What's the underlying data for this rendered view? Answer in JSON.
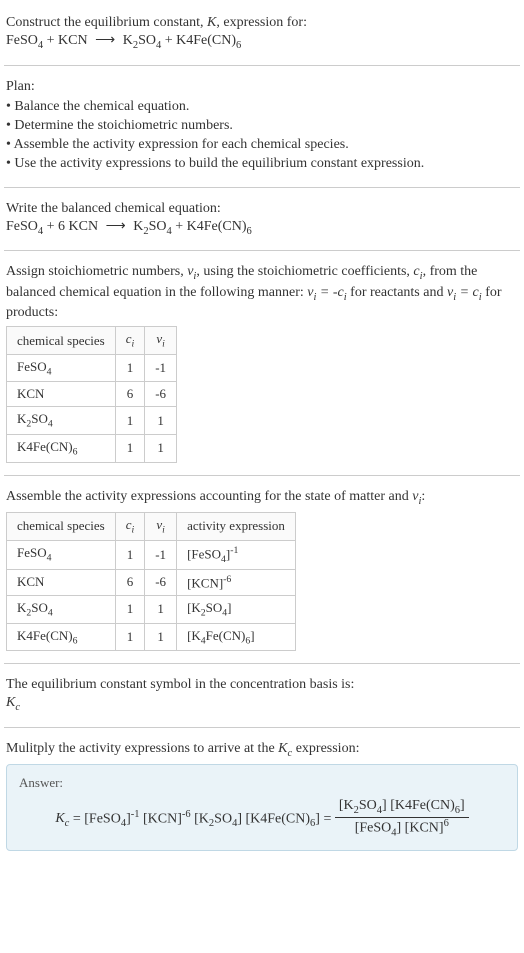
{
  "header": {
    "line1": "Construct the equilibrium constant, ",
    "K": "K",
    "line1b": ", expression for:",
    "eq": "FeSO₄ + KCN  ⟶  K₂SO₄ + K4Fe(CN)₆"
  },
  "plan": {
    "title": "Plan:",
    "items": [
      "• Balance the chemical equation.",
      "• Determine the stoichiometric numbers.",
      "• Assemble the activity expression for each chemical species.",
      "• Use the activity expressions to build the equilibrium constant expression."
    ]
  },
  "balanced": {
    "title": "Write the balanced chemical equation:",
    "eq": "FeSO₄ + 6 KCN  ⟶  K₂SO₄ + K4Fe(CN)₆"
  },
  "assign": {
    "text1": "Assign stoichiometric numbers, ",
    "vi": "νᵢ",
    "text2": ", using the stoichiometric coefficients, ",
    "ci": "cᵢ",
    "text3": ", from the balanced chemical equation in the following manner: ",
    "eqrel1": "νᵢ = -cᵢ",
    "text4": " for reactants and ",
    "eqrel2": "νᵢ = cᵢ",
    "text5": " for products:"
  },
  "table1": {
    "headers": [
      "chemical species",
      "cᵢ",
      "νᵢ"
    ],
    "rows": [
      [
        "FeSO₄",
        "1",
        "-1"
      ],
      [
        "KCN",
        "6",
        "-6"
      ],
      [
        "K₂SO₄",
        "1",
        "1"
      ],
      [
        "K4Fe(CN)₆",
        "1",
        "1"
      ]
    ]
  },
  "assemble": {
    "text1": "Assemble the activity expressions accounting for the state of matter and ",
    "vi": "νᵢ",
    "text2": ":"
  },
  "table2": {
    "headers": [
      "chemical species",
      "cᵢ",
      "νᵢ",
      "activity expression"
    ],
    "rows": [
      {
        "sp": "FeSO₄",
        "c": "1",
        "v": "-1",
        "ae_base": "[FeSO₄]",
        "ae_exp": "-1"
      },
      {
        "sp": "KCN",
        "c": "6",
        "v": "-6",
        "ae_base": "[KCN]",
        "ae_exp": "-6"
      },
      {
        "sp": "K₂SO₄",
        "c": "1",
        "v": "1",
        "ae_base": "[K₂SO₄]",
        "ae_exp": ""
      },
      {
        "sp": "K₄Fe(CN)₆",
        "c": "1",
        "v": "1",
        "ae_base": "[K₄Fe(CN)₆]",
        "ae_exp": ""
      }
    ]
  },
  "kc_symbol": {
    "line1": "The equilibrium constant symbol in the concentration basis is:",
    "kc": "K_c"
  },
  "multiply": {
    "text": "Mulitply the activity expressions to arrive at the ",
    "kc": "K_c",
    "text2": " expression:"
  },
  "answer": {
    "label": "Answer:",
    "lhs": "K_c = [FeSO₄]⁻¹ [KCN]⁻⁶ [K₂SO₄] [K4Fe(CN)₆] = ",
    "num": "[K₂SO₄] [K4Fe(CN)₆]",
    "den": "[FeSO₄] [KCN]⁶"
  },
  "colors": {
    "text": "#333333",
    "border": "#cccccc",
    "answer_bg": "#eaf3f8",
    "answer_border": "#c0d8e5"
  }
}
